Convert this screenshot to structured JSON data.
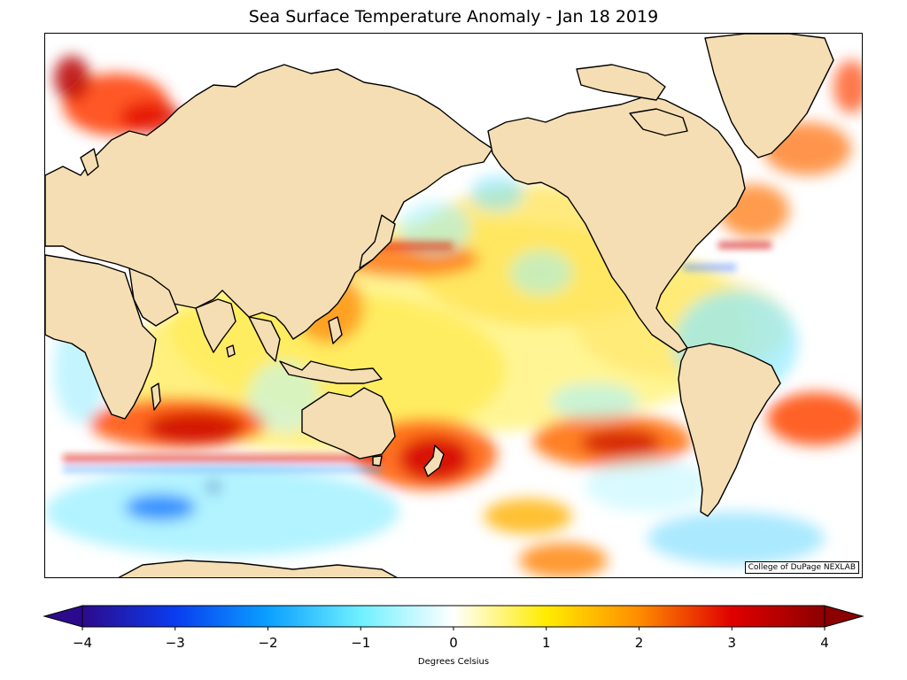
{
  "title": "Sea Surface Temperature Anomaly - Jan 18 2019",
  "credit": "College of DuPage NEXLAB",
  "colorbar": {
    "label": "Degrees Celsius",
    "ticks": [
      "−4",
      "−3",
      "−2",
      "−1",
      "0",
      "1",
      "2",
      "3",
      "4"
    ],
    "range": [
      -4,
      4
    ],
    "stops": [
      {
        "value": -4,
        "color": "#2c0a8c"
      },
      {
        "value": -3,
        "color": "#0a3cf0"
      },
      {
        "value": -2,
        "color": "#0aa0ff"
      },
      {
        "value": -1,
        "color": "#6ff0ff"
      },
      {
        "value": 0,
        "color": "#ffffff"
      },
      {
        "value": 1,
        "color": "#ffec00"
      },
      {
        "value": 2,
        "color": "#ff8c00"
      },
      {
        "value": 3,
        "color": "#e00000"
      },
      {
        "value": 4,
        "color": "#8c0000"
      }
    ]
  },
  "colors": {
    "land": "#f5deb3",
    "coast": "#000000",
    "ocean_neutral": "#ffffff"
  }
}
